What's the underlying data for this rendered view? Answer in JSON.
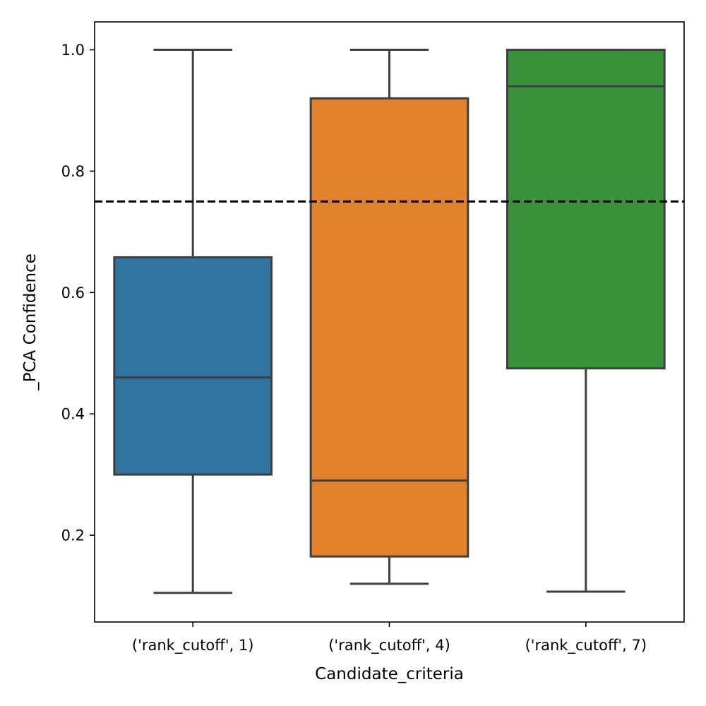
{
  "chart_data": {
    "type": "box",
    "xlabel": "Candidate_criteria",
    "ylabel": "_PCA Confidence",
    "ylim": [
      0.057,
      1.046
    ],
    "yticks": [
      0.2,
      0.4,
      0.6,
      0.8,
      1.0
    ],
    "ytick_labels": [
      "0.2",
      "0.4",
      "0.6",
      "0.8",
      "1.0"
    ],
    "grid": false,
    "legend": "none",
    "reference_line": {
      "y": 0.75,
      "style": "dashed",
      "color": "#000000"
    },
    "categories": [
      "('rank_cutoff', 1)",
      "('rank_cutoff', 4)",
      "('rank_cutoff', 7)"
    ],
    "boxes": [
      {
        "category": "('rank_cutoff', 1)",
        "whisker_low": 0.105,
        "q1": 0.3,
        "median": 0.46,
        "q3": 0.658,
        "whisker_high": 1.0,
        "color": "#3274a1"
      },
      {
        "category": "('rank_cutoff', 4)",
        "whisker_low": 0.12,
        "q1": 0.165,
        "median": 0.29,
        "q3": 0.92,
        "whisker_high": 1.0,
        "color": "#e1812c"
      },
      {
        "category": "('rank_cutoff', 7)",
        "whisker_low": 0.107,
        "q1": 0.475,
        "median": 0.94,
        "q3": 1.0,
        "whisker_high": 1.0,
        "color": "#3a923a"
      }
    ],
    "edge_color": "#3f3f3f"
  }
}
